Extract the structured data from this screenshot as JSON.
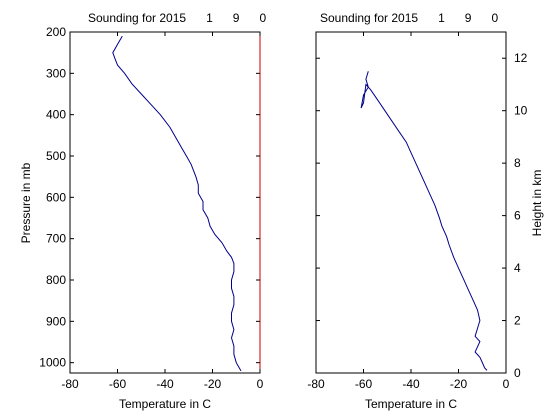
{
  "chart_data": [
    {
      "type": "line",
      "title": "Sounding for 2015      1      9      0",
      "xlabel": "Temperature in C",
      "ylabel": "Pressure in mb",
      "xlim": [
        -80,
        0
      ],
      "ylim": [
        1025,
        200
      ],
      "y_inverted": true,
      "xticks": [
        "-80",
        "-60",
        "-40",
        "-20",
        "0"
      ],
      "yticks": [
        "200",
        "300",
        "400",
        "500",
        "600",
        "700",
        "800",
        "900",
        "1000"
      ],
      "grid": false,
      "line_color": "#00008b",
      "right_axis_color": "#cc0000",
      "series": [
        {
          "x": [
            -8,
            -9,
            -10,
            -11,
            -11,
            -12,
            -11,
            -12,
            -12,
            -11,
            -11,
            -12,
            -12,
            -11,
            -11,
            -12,
            -14,
            -16,
            -19,
            -21,
            -22,
            -24,
            -24,
            -26,
            -26,
            -27,
            -29,
            -31,
            -33,
            -35,
            -38,
            -42,
            -46,
            -50,
            -54,
            -57,
            -60,
            -61,
            -62,
            -60,
            -58
          ],
          "y": [
            1020,
            1010,
            1000,
            980,
            960,
            940,
            920,
            900,
            880,
            860,
            840,
            820,
            800,
            780,
            760,
            745,
            730,
            710,
            690,
            670,
            650,
            630,
            610,
            590,
            570,
            550,
            520,
            500,
            480,
            460,
            430,
            400,
            375,
            350,
            325,
            300,
            280,
            265,
            250,
            230,
            210
          ]
        }
      ]
    },
    {
      "type": "line",
      "title": "Sounding for 2015      1      9      0",
      "xlabel": "Temperature in C",
      "ylabel": "Height in km",
      "xlim": [
        -80,
        0
      ],
      "ylim": [
        0,
        13
      ],
      "xticks": [
        "-80",
        "-60",
        "-40",
        "-20",
        "0"
      ],
      "yticks": [
        "0",
        "2",
        "4",
        "6",
        "8",
        "10",
        "12"
      ],
      "grid": false,
      "line_color": "#00008b",
      "series": [
        {
          "x": [
            -8,
            -9,
            -10,
            -11,
            -13,
            -12,
            -11,
            -13,
            -12,
            -11,
            -12,
            -14,
            -16,
            -18,
            -20,
            -22,
            -24,
            -25,
            -26,
            -27,
            -28,
            -30,
            -32,
            -34,
            -36,
            -38,
            -40,
            -42,
            -45,
            -48,
            -51,
            -54,
            -57,
            -59,
            -60,
            -61,
            -60,
            -58,
            -59,
            -58
          ],
          "y": [
            0.1,
            0.2,
            0.4,
            0.6,
            0.8,
            1.0,
            1.2,
            1.4,
            1.7,
            2.0,
            2.4,
            2.8,
            3.2,
            3.6,
            4.0,
            4.4,
            4.9,
            5.2,
            5.4,
            5.6,
            5.9,
            6.4,
            6.8,
            7.2,
            7.6,
            8.0,
            8.4,
            8.8,
            9.2,
            9.6,
            10.0,
            10.4,
            10.8,
            11.0,
            10.3,
            10.1,
            10.6,
            10.9,
            11.2,
            11.5
          ]
        }
      ]
    }
  ]
}
